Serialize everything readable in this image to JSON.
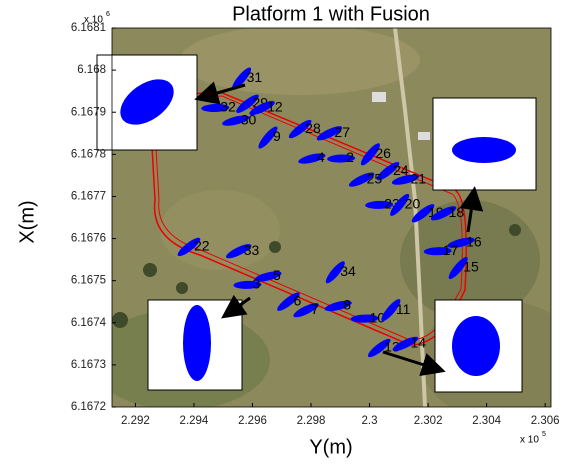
{
  "chart_data": {
    "type": "scatter",
    "title": "Platform 1 with Fusion",
    "x_label": "Y(m)",
    "y_label": "X(m)",
    "x_multiplier": {
      "text": "x 10",
      "exponent": "5"
    },
    "y_multiplier": {
      "text": "x 10",
      "exponent": "6"
    },
    "xlim": [
      2.2912,
      2.3062
    ],
    "ylim": [
      6.1672,
      6.1681
    ],
    "xticks": [
      2.292,
      2.294,
      2.296,
      2.298,
      2.3,
      2.302,
      2.304,
      2.306
    ],
    "yticks": [
      6.1672,
      6.1673,
      6.1674,
      6.1675,
      6.1676,
      6.1677,
      6.1678,
      6.1679,
      6.168,
      6.1681
    ],
    "color": "#0000ff",
    "point_labels": [
      "31",
      "29",
      "12",
      "30",
      "32",
      "9",
      "28",
      "27",
      "4",
      "2",
      "26",
      "24",
      "25",
      "21",
      "23",
      "20",
      "19",
      "18",
      "16",
      "17",
      "15",
      "22",
      "33",
      "5",
      "3",
      "34",
      "6",
      "7",
      "8",
      "10",
      "11",
      "13",
      "14"
    ],
    "x": [
      2.2958,
      2.296,
      2.2965,
      2.2956,
      2.2949,
      2.2967,
      2.2978,
      2.2988,
      2.2982,
      2.2992,
      2.3002,
      2.3008,
      2.2999,
      2.3014,
      2.3005,
      2.3012,
      2.302,
      2.3027,
      2.3033,
      2.3025,
      2.3032,
      2.294,
      2.2957,
      2.2967,
      2.296,
      2.299,
      2.2974,
      2.298,
      2.2991,
      2.3,
      2.3009,
      2.3005,
      2.3014
    ],
    "values": [
      6.16798,
      6.16792,
      6.16791,
      6.16788,
      6.16791,
      6.16784,
      6.16786,
      6.16785,
      6.16779,
      6.16779,
      6.1678,
      6.16776,
      6.16774,
      6.16774,
      6.16768,
      6.16768,
      6.16766,
      6.16766,
      6.16759,
      6.16757,
      6.16753,
      6.16758,
      6.16757,
      6.16751,
      6.16749,
      6.16752,
      6.16745,
      6.16743,
      6.16744,
      6.16741,
      6.16743,
      6.16734,
      6.16735
    ]
  }
}
